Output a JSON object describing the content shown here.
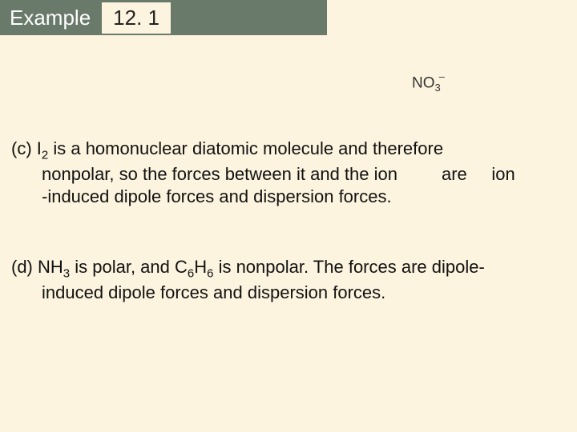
{
  "colors": {
    "background": "#fdf4df",
    "header_bar": "#697a6a",
    "header_text": "#ffffff",
    "body_text": "#111111",
    "formula_text": "#333333"
  },
  "fonts": {
    "family": "Arial",
    "header_size_pt": 20,
    "body_size_pt": 17,
    "formula_size_pt": 14
  },
  "header": {
    "label": "Example",
    "number": "12. 1"
  },
  "formula": {
    "base": "NO",
    "subscript": "3",
    "superscript": "–"
  },
  "part_c": {
    "marker": "(c)",
    "line1_prefix": " I",
    "line1_sub": "2",
    "line1_rest": " is a homonuclear diatomic molecule and therefore",
    "line2": "nonpolar, so the forces between it and the ion         are     ion",
    "line3": "-induced dipole forces and dispersion forces."
  },
  "part_d": {
    "marker": "(d)",
    "line1_a": " NH",
    "line1_sub1": "3",
    "line1_b": " is polar, and C",
    "line1_sub2": "6",
    "line1_c": "H",
    "line1_sub3": "6",
    "line1_d": " is nonpolar.  The forces are dipole-",
    "line2": "induced dipole forces and dispersion forces."
  }
}
